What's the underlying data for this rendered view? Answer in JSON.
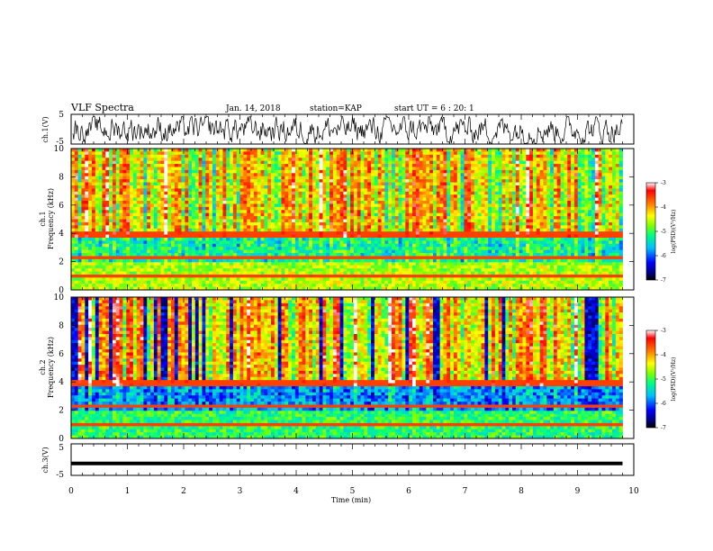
{
  "header": {
    "title": "VLF Spectra",
    "date": "Jan. 14, 2018",
    "station": "station=KAP",
    "start": "start UT =  6 : 20: 1"
  },
  "chart_data": [
    {
      "type": "line",
      "name": "ch1-waveform",
      "ylabel": "ch.1(V)",
      "ylim": [
        -5,
        5
      ],
      "yticks": [
        "5",
        "-5"
      ],
      "xlim": [
        0,
        10
      ],
      "note": "noisy waveform, values mostly between -5 and 4"
    },
    {
      "type": "heatmap",
      "name": "ch1-spectrogram",
      "ylabel": "ch.1\nFrequency (kHz)",
      "ylim": [
        0,
        10
      ],
      "yticks": [
        "0",
        "2",
        "4",
        "6",
        "8",
        "10"
      ],
      "xlim": [
        0,
        9.8
      ],
      "colorbar": {
        "label": "log(PSD)(V²/Hz)",
        "range": [
          -7,
          -3
        ],
        "ticks": [
          "-3",
          "-4",
          "-5",
          "-6",
          "-7"
        ]
      }
    },
    {
      "type": "heatmap",
      "name": "ch2-spectrogram",
      "ylabel": "ch.2\nFrequency (kHz)",
      "ylim": [
        0,
        10
      ],
      "yticks": [
        "0",
        "2",
        "4",
        "6",
        "8",
        "10"
      ],
      "xlim": [
        0,
        9.8
      ],
      "colorbar": {
        "label": "log(PSD)(V²/Hz)",
        "range": [
          -7,
          -3
        ],
        "ticks": [
          "-3",
          "-4",
          "-5",
          "-6",
          "-7"
        ]
      }
    },
    {
      "type": "line",
      "name": "ch3-level",
      "ylabel": "ch.3(V)",
      "ylim": [
        -5,
        5
      ],
      "yticks": [
        "5",
        "-5"
      ],
      "x": [
        0,
        9.8
      ],
      "y": [
        -1.2,
        -1.2
      ]
    }
  ],
  "xaxis": {
    "label": "Time (min)",
    "ticks": [
      "0",
      "1",
      "2",
      "3",
      "4",
      "5",
      "6",
      "7",
      "8",
      "9",
      "10"
    ],
    "range": [
      0,
      10
    ]
  },
  "colors": {
    "colormap": [
      "#000000",
      "#00008b",
      "#0000ff",
      "#00c0ff",
      "#00ff80",
      "#80ff00",
      "#ffff00",
      "#ff8000",
      "#ff0000",
      "#ffffff"
    ],
    "line": "#000000"
  }
}
